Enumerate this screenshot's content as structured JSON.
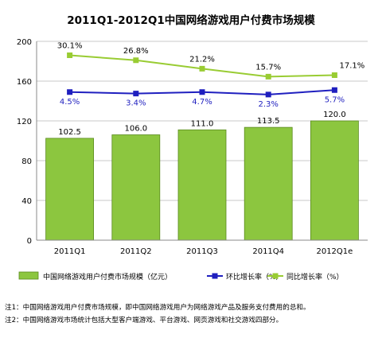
{
  "chart_data": {
    "type": "bar+line",
    "title": "2011Q1-2012Q1中国网络游戏用户付费市场规模",
    "categories": [
      "2011Q1",
      "2011Q2",
      "2011Q3",
      "2011Q4",
      "2012Q1e"
    ],
    "ylim": [
      0,
      200
    ],
    "yticks": [
      0,
      40,
      80,
      120,
      160,
      200
    ],
    "grid": true,
    "legend_position": "bottom",
    "bar_series": {
      "name": "中国网络游戏用户付费市场规模（亿元）",
      "values": [
        102.5,
        106.0,
        111.0,
        113.5,
        120.0
      ],
      "labels": [
        "102.5",
        "106.0",
        "111.0",
        "113.5",
        "120.0"
      ],
      "color": "#8cc63f"
    },
    "line_series": [
      {
        "name": "环比增长率（%）",
        "values": [
          4.5,
          3.4,
          4.7,
          2.3,
          5.7
        ],
        "labels": [
          "4.5%",
          "3.4%",
          "4.7%",
          "2.3%",
          "5.7%"
        ],
        "plot_positions": [
          149,
          147.5,
          149,
          146.5,
          151
        ],
        "color": "#1f1fbf",
        "marker": "square"
      },
      {
        "name": "同比增长率（%）",
        "values": [
          30.1,
          26.8,
          21.2,
          15.7,
          17.1
        ],
        "labels": [
          "30.1%",
          "26.8%",
          "21.2%",
          "15.7%",
          "17.1%"
        ],
        "plot_positions": [
          186,
          181,
          172.5,
          164.5,
          166
        ],
        "color": "#99cc33",
        "marker": "square"
      }
    ]
  },
  "notes": [
    "注1：中国网络游戏用户付费市场规模，即中国网络游戏用户为网络游戏产品及服务支付费用的总和。",
    "注2：中国网络游戏市场统计包括大型客户端游戏、平台游戏、网页游戏和社交游戏四部分。"
  ]
}
